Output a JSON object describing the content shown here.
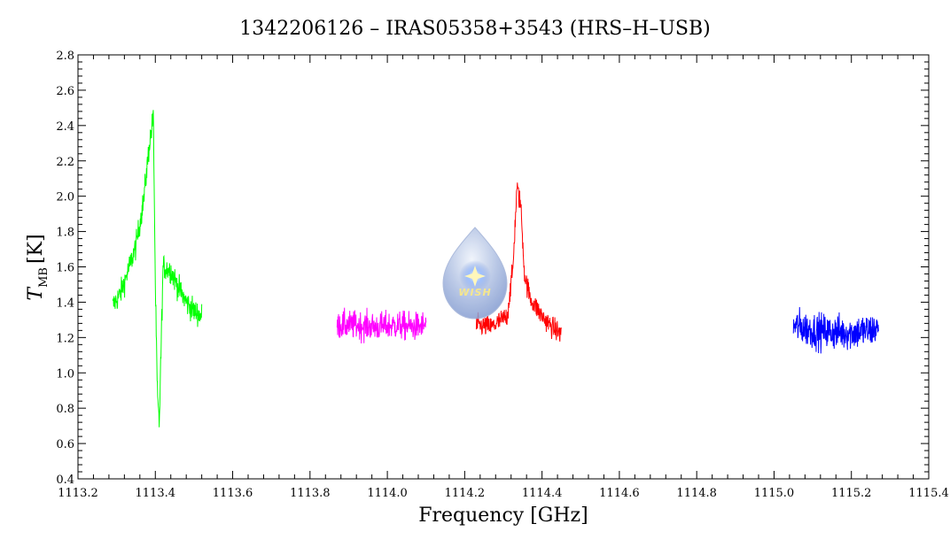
{
  "chart_data": {
    "type": "line",
    "title": "1342206126 – IRAS05358+3543 (HRS–H–USB)",
    "xlabel": "Frequency [GHz]",
    "ylabel_main": "T",
    "ylabel_sub": "MB",
    "ylabel_unit": "[K]",
    "xlim": [
      1113.2,
      1115.4
    ],
    "ylim": [
      0.4,
      2.8
    ],
    "x_major_ticks": [
      1113.2,
      1113.4,
      1113.6,
      1113.8,
      1114.0,
      1114.2,
      1114.4,
      1114.6,
      1114.8,
      1115.0,
      1115.2,
      1115.4
    ],
    "x_tick_labels": [
      "1113.2",
      "1113.4",
      "1113.6",
      "1113.8",
      "1114.0",
      "1114.2",
      "1114.4",
      "1114.6",
      "1114.8",
      "1115.0",
      "1115.2",
      "1115.4"
    ],
    "y_major_ticks": [
      0.4,
      0.6,
      0.8,
      1.0,
      1.2,
      1.4,
      1.6,
      1.8,
      2.0,
      2.2,
      2.4,
      2.6,
      2.8
    ],
    "y_tick_labels": [
      "0.4",
      "0.6",
      "0.8",
      "1.0",
      "1.2",
      "1.4",
      "1.6",
      "1.8",
      "2.0",
      "2.2",
      "2.4",
      "2.6",
      "2.8"
    ],
    "grid": false,
    "series": [
      {
        "color": "#00ff00",
        "x": [
          1113.29,
          1113.31,
          1113.33,
          1113.35,
          1113.37,
          1113.385,
          1113.395,
          1113.4,
          1113.405,
          1113.41,
          1113.42,
          1113.44,
          1113.46,
          1113.48,
          1113.5,
          1113.52
        ],
        "y": [
          1.38,
          1.45,
          1.58,
          1.72,
          1.98,
          2.3,
          2.45,
          1.5,
          0.9,
          0.7,
          1.6,
          1.58,
          1.48,
          1.4,
          1.35,
          1.32
        ],
        "noise": 0.07
      },
      {
        "color": "#ff00ff",
        "x": [
          1113.87,
          1113.92,
          1113.97,
          1114.02,
          1114.07,
          1114.1
        ],
        "y": [
          1.27,
          1.27,
          1.26,
          1.27,
          1.26,
          1.27
        ],
        "noise": 0.08
      },
      {
        "color": "#ff0000",
        "x": [
          1114.23,
          1114.27,
          1114.31,
          1114.325,
          1114.335,
          1114.345,
          1114.355,
          1114.37,
          1114.4,
          1114.43,
          1114.45
        ],
        "y": [
          1.27,
          1.26,
          1.32,
          1.6,
          2.05,
          1.95,
          1.55,
          1.42,
          1.32,
          1.25,
          1.22
        ],
        "noise": 0.06
      },
      {
        "color": "#0000ff",
        "x": [
          1115.05,
          1115.1,
          1115.15,
          1115.2,
          1115.25,
          1115.27
        ],
        "y": [
          1.27,
          1.24,
          1.23,
          1.23,
          1.24,
          1.25
        ],
        "noise": 0.1
      }
    ]
  },
  "logo": {
    "text": "WISH"
  }
}
